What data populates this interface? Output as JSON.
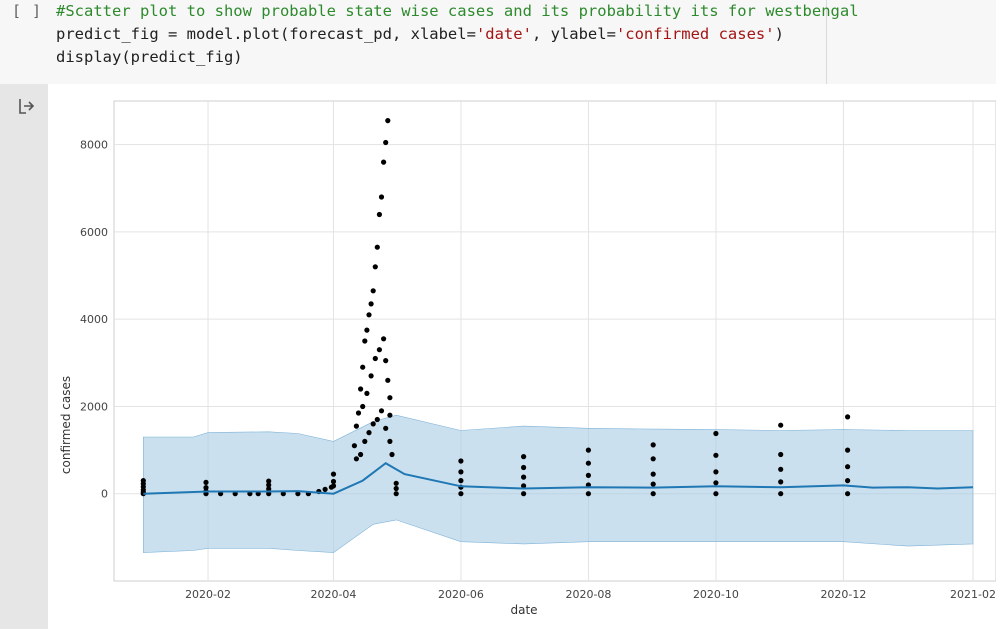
{
  "cell": {
    "prompt": "[ ]",
    "code": {
      "comment": "#Scatter plot to show probable state wise cases and its probability its for westbengal",
      "line2_pre": "predict_fig = model.plot(forecast_pd, xlabel=",
      "xlabel_str": "'date'",
      "line2_mid": ", ylabel=",
      "ylabel_str": "'confirmed cases'",
      "line2_post": ")",
      "line3": "display(predict_fig)"
    }
  },
  "output": {
    "icon": "output-arrow-icon"
  },
  "chart_data": {
    "type": "scatter",
    "xlabel": "date",
    "ylabel": "confirmed cases",
    "x_ticks": [
      "2020-02",
      "2020-04",
      "2020-06",
      "2020-08",
      "2020-10",
      "2020-12",
      "2021-02"
    ],
    "y_ticks": [
      "0",
      "2000",
      "4000",
      "6000",
      "8000"
    ],
    "ylim": [
      -2000,
      9000
    ],
    "xlim": [
      "2019-12-18",
      "2021-02-12"
    ],
    "grid": true,
    "colors": {
      "points": "#000000",
      "forecast": "#1f77b4",
      "interval": "#a6cce4"
    },
    "series": [
      {
        "kind": "actual",
        "points": [
          [
            "2020-01-01",
            0
          ],
          [
            "2020-01-01",
            40
          ],
          [
            "2020-01-01",
            90
          ],
          [
            "2020-01-01",
            160
          ],
          [
            "2020-01-01",
            230
          ],
          [
            "2020-01-01",
            300
          ],
          [
            "2020-01-31",
            0
          ],
          [
            "2020-01-31",
            60
          ],
          [
            "2020-01-31",
            140
          ],
          [
            "2020-01-31",
            260
          ],
          [
            "2020-02-07",
            0
          ],
          [
            "2020-02-14",
            0
          ],
          [
            "2020-02-21",
            0
          ],
          [
            "2020-02-25",
            0
          ],
          [
            "2020-03-01",
            0
          ],
          [
            "2020-03-01",
            50
          ],
          [
            "2020-03-01",
            110
          ],
          [
            "2020-03-01",
            200
          ],
          [
            "2020-03-01",
            290
          ],
          [
            "2020-03-08",
            0
          ],
          [
            "2020-03-15",
            0
          ],
          [
            "2020-03-20",
            0
          ],
          [
            "2020-03-25",
            50
          ],
          [
            "2020-03-28",
            100
          ],
          [
            "2020-03-31",
            150
          ],
          [
            "2020-04-01",
            180
          ],
          [
            "2020-04-01",
            280
          ],
          [
            "2020-04-01",
            450
          ],
          [
            "2020-04-11",
            1100
          ],
          [
            "2020-04-12",
            1550
          ],
          [
            "2020-04-13",
            1850
          ],
          [
            "2020-04-14",
            2400
          ],
          [
            "2020-04-15",
            2900
          ],
          [
            "2020-04-16",
            3500
          ],
          [
            "2020-04-17",
            3750
          ],
          [
            "2020-04-18",
            4100
          ],
          [
            "2020-04-19",
            4350
          ],
          [
            "2020-04-20",
            4650
          ],
          [
            "2020-04-21",
            5200
          ],
          [
            "2020-04-22",
            5650
          ],
          [
            "2020-04-23",
            6400
          ],
          [
            "2020-04-24",
            6800
          ],
          [
            "2020-04-25",
            7600
          ],
          [
            "2020-04-26",
            8050
          ],
          [
            "2020-04-27",
            8550
          ],
          [
            "2020-04-15",
            2000
          ],
          [
            "2020-04-17",
            2300
          ],
          [
            "2020-04-19",
            2700
          ],
          [
            "2020-04-21",
            3100
          ],
          [
            "2020-04-23",
            3300
          ],
          [
            "2020-04-25",
            3550
          ],
          [
            "2020-04-26",
            3050
          ],
          [
            "2020-04-27",
            2600
          ],
          [
            "2020-04-28",
            2200
          ],
          [
            "2020-04-28",
            1800
          ],
          [
            "2020-04-12",
            800
          ],
          [
            "2020-04-14",
            900
          ],
          [
            "2020-04-16",
            1200
          ],
          [
            "2020-04-18",
            1400
          ],
          [
            "2020-04-20",
            1600
          ],
          [
            "2020-04-22",
            1700
          ],
          [
            "2020-04-24",
            1900
          ],
          [
            "2020-04-26",
            1500
          ],
          [
            "2020-04-28",
            1200
          ],
          [
            "2020-04-29",
            900
          ],
          [
            "2020-05-01",
            0
          ],
          [
            "2020-05-01",
            120
          ],
          [
            "2020-05-01",
            240
          ],
          [
            "2020-06-01",
            0
          ],
          [
            "2020-06-01",
            150
          ],
          [
            "2020-06-01",
            300
          ],
          [
            "2020-06-01",
            500
          ],
          [
            "2020-06-01",
            750
          ],
          [
            "2020-07-01",
            0
          ],
          [
            "2020-07-01",
            180
          ],
          [
            "2020-07-01",
            380
          ],
          [
            "2020-07-01",
            600
          ],
          [
            "2020-07-01",
            850
          ],
          [
            "2020-08-01",
            0
          ],
          [
            "2020-08-01",
            200
          ],
          [
            "2020-08-01",
            420
          ],
          [
            "2020-08-01",
            700
          ],
          [
            "2020-08-01",
            1000
          ],
          [
            "2020-09-01",
            0
          ],
          [
            "2020-09-01",
            220
          ],
          [
            "2020-09-01",
            450
          ],
          [
            "2020-09-01",
            800
          ],
          [
            "2020-09-01",
            1120
          ],
          [
            "2020-10-01",
            0
          ],
          [
            "2020-10-01",
            250
          ],
          [
            "2020-10-01",
            500
          ],
          [
            "2020-10-01",
            880
          ],
          [
            "2020-10-01",
            1380
          ],
          [
            "2020-11-01",
            0
          ],
          [
            "2020-11-01",
            270
          ],
          [
            "2020-11-01",
            560
          ],
          [
            "2020-11-01",
            900
          ],
          [
            "2020-11-01",
            1570
          ],
          [
            "2020-12-03",
            0
          ],
          [
            "2020-12-03",
            300
          ],
          [
            "2020-12-03",
            620
          ],
          [
            "2020-12-03",
            1000
          ],
          [
            "2020-12-03",
            1760
          ]
        ]
      },
      {
        "kind": "forecast",
        "line": [
          [
            "2020-01-01",
            0
          ],
          [
            "2020-02-01",
            50
          ],
          [
            "2020-03-01",
            50
          ],
          [
            "2020-03-15",
            60
          ],
          [
            "2020-04-01",
            0
          ],
          [
            "2020-04-15",
            300
          ],
          [
            "2020-04-26",
            700
          ],
          [
            "2020-05-05",
            450
          ],
          [
            "2020-06-01",
            170
          ],
          [
            "2020-07-01",
            120
          ],
          [
            "2020-08-01",
            150
          ],
          [
            "2020-09-01",
            140
          ],
          [
            "2020-10-01",
            170
          ],
          [
            "2020-11-01",
            150
          ],
          [
            "2020-12-01",
            190
          ],
          [
            "2020-12-15",
            140
          ],
          [
            "2021-01-01",
            150
          ],
          [
            "2021-01-15",
            120
          ],
          [
            "2021-02-01",
            150
          ]
        ],
        "upper": [
          [
            "2020-01-01",
            1300
          ],
          [
            "2020-01-25",
            1300
          ],
          [
            "2020-02-01",
            1400
          ],
          [
            "2020-03-01",
            1420
          ],
          [
            "2020-03-15",
            1380
          ],
          [
            "2020-04-01",
            1200
          ],
          [
            "2020-04-20",
            1650
          ],
          [
            "2020-05-01",
            1800
          ],
          [
            "2020-06-01",
            1450
          ],
          [
            "2020-07-01",
            1550
          ],
          [
            "2020-08-01",
            1500
          ],
          [
            "2020-09-01",
            1480
          ],
          [
            "2020-10-01",
            1470
          ],
          [
            "2020-11-01",
            1450
          ],
          [
            "2020-12-01",
            1470
          ],
          [
            "2021-01-01",
            1450
          ],
          [
            "2021-02-01",
            1450
          ]
        ],
        "lower": [
          [
            "2020-01-01",
            -1350
          ],
          [
            "2020-01-25",
            -1300
          ],
          [
            "2020-02-01",
            -1250
          ],
          [
            "2020-03-01",
            -1250
          ],
          [
            "2020-03-15",
            -1300
          ],
          [
            "2020-04-01",
            -1350
          ],
          [
            "2020-04-20",
            -700
          ],
          [
            "2020-05-01",
            -600
          ],
          [
            "2020-06-01",
            -1100
          ],
          [
            "2020-07-01",
            -1150
          ],
          [
            "2020-08-01",
            -1100
          ],
          [
            "2020-09-01",
            -1100
          ],
          [
            "2020-10-01",
            -1100
          ],
          [
            "2020-11-01",
            -1100
          ],
          [
            "2020-12-01",
            -1100
          ],
          [
            "2021-01-01",
            -1200
          ],
          [
            "2021-02-01",
            -1150
          ]
        ]
      }
    ]
  }
}
